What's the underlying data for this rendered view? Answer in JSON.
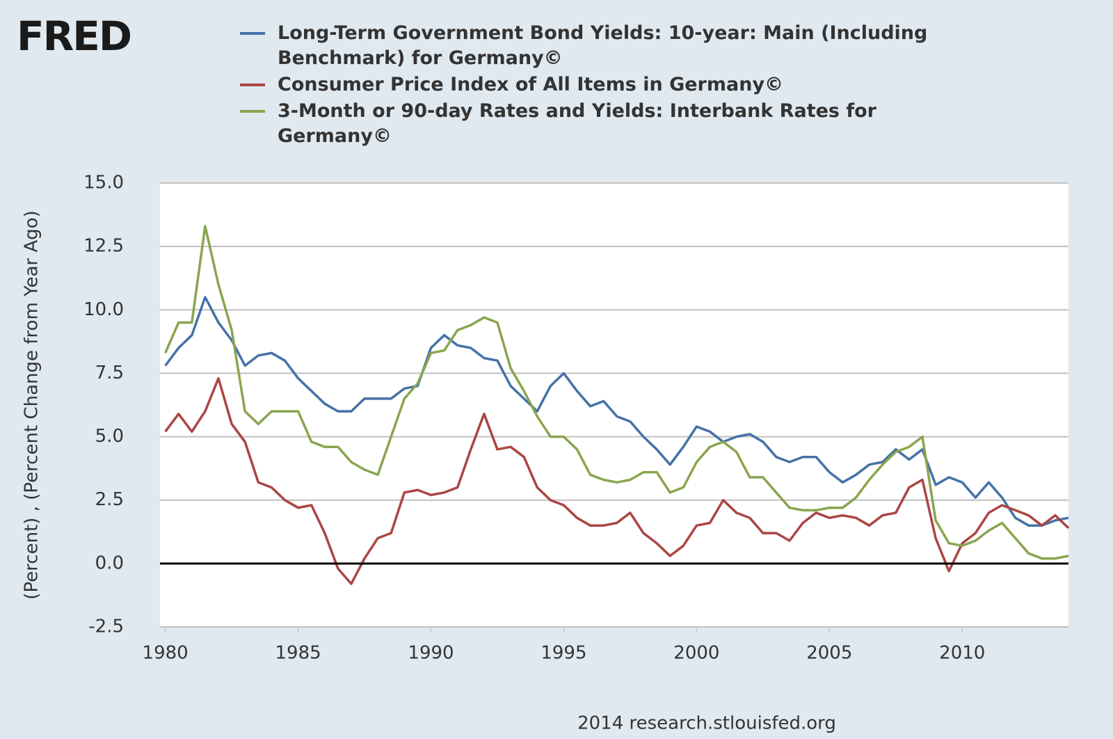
{
  "logo": "FRED",
  "chart_data": {
    "type": "line",
    "ylabel": "(Percent) , (Percent Change from Year Ago)",
    "source": "2014 research.stlouisfed.org",
    "x": [
      1980,
      1980.5,
      1981,
      1981.5,
      1982,
      1982.5,
      1983,
      1983.5,
      1984,
      1984.5,
      1985,
      1985.5,
      1986,
      1986.5,
      1987,
      1987.5,
      1988,
      1988.5,
      1989,
      1989.5,
      1990,
      1990.5,
      1991,
      1991.5,
      1992,
      1992.5,
      1993,
      1993.5,
      1994,
      1994.5,
      1995,
      1995.5,
      1996,
      1996.5,
      1997,
      1997.5,
      1998,
      1998.5,
      1999,
      1999.5,
      2000,
      2000.5,
      2001,
      2001.5,
      2002,
      2002.5,
      2003,
      2003.5,
      2004,
      2004.5,
      2005,
      2005.5,
      2006,
      2006.5,
      2007,
      2007.5,
      2008,
      2008.5,
      2009,
      2009.5,
      2010,
      2010.5,
      2011,
      2011.5,
      2012,
      2012.5,
      2013,
      2013.5,
      2014
    ],
    "xlim": [
      1979.8,
      2014
    ],
    "xticks": [
      1980,
      1985,
      1990,
      1995,
      2000,
      2005,
      2010
    ],
    "ylim": [
      -2.5,
      15
    ],
    "yticks": [
      {
        "value": -2.5,
        "label": "-2.5"
      },
      {
        "value": 0,
        "label": "0.0"
      },
      {
        "value": 2.5,
        "label": "2.5"
      },
      {
        "value": 5,
        "label": "5.0"
      },
      {
        "value": 7.5,
        "label": "7.5"
      },
      {
        "value": 10,
        "label": "10.0"
      },
      {
        "value": 12.5,
        "label": "12.5"
      },
      {
        "value": 15,
        "label": "15.0"
      }
    ],
    "grid": true,
    "series": [
      {
        "name": "Long-Term Government Bond Yields: 10-year: Main (Including Benchmark) for Germany©",
        "color": "#4572a7",
        "values": [
          7.8,
          8.5,
          9.0,
          10.5,
          9.5,
          8.8,
          7.8,
          8.2,
          8.3,
          8.0,
          7.3,
          6.8,
          6.3,
          6.0,
          6.0,
          6.5,
          6.5,
          6.5,
          6.9,
          7.0,
          8.5,
          9.0,
          8.6,
          8.5,
          8.1,
          8.0,
          7.0,
          6.5,
          6.0,
          7.0,
          7.5,
          6.8,
          6.2,
          6.4,
          5.8,
          5.6,
          5.0,
          4.5,
          3.9,
          4.6,
          5.4,
          5.2,
          4.8,
          5.0,
          5.1,
          4.8,
          4.2,
          4.0,
          4.2,
          4.2,
          3.6,
          3.2,
          3.5,
          3.9,
          4.0,
          4.5,
          4.1,
          4.5,
          3.1,
          3.4,
          3.2,
          2.6,
          3.2,
          2.6,
          1.8,
          1.5,
          1.5,
          1.7,
          1.8
        ]
      },
      {
        "name": "Consumer Price Index of All Items in Germany©",
        "color": "#aa4643",
        "values": [
          5.2,
          5.9,
          5.2,
          6.0,
          7.3,
          5.5,
          4.8,
          3.2,
          3.0,
          2.5,
          2.2,
          2.3,
          1.2,
          -0.2,
          -0.8,
          0.2,
          1.0,
          1.2,
          2.8,
          2.9,
          2.7,
          2.8,
          3.0,
          4.5,
          5.9,
          4.5,
          4.6,
          4.2,
          3.0,
          2.5,
          2.3,
          1.8,
          1.5,
          1.5,
          1.6,
          2.0,
          1.2,
          0.8,
          0.3,
          0.7,
          1.5,
          1.6,
          2.5,
          2.0,
          1.8,
          1.2,
          1.2,
          0.9,
          1.6,
          2.0,
          1.8,
          1.9,
          1.8,
          1.5,
          1.9,
          2.0,
          3.0,
          3.3,
          1.0,
          -0.3,
          0.8,
          1.2,
          2.0,
          2.3,
          2.1,
          1.9,
          1.5,
          1.9,
          1.4
        ]
      },
      {
        "name": "3-Month or 90-day Rates and Yields: Interbank Rates for Germany©",
        "color": "#89a54e",
        "values": [
          8.3,
          9.5,
          9.5,
          13.3,
          11.0,
          9.2,
          6.0,
          5.5,
          6.0,
          6.0,
          6.0,
          4.8,
          4.6,
          4.6,
          4.0,
          3.7,
          3.5,
          5.0,
          6.5,
          7.1,
          8.3,
          8.4,
          9.2,
          9.4,
          9.7,
          9.5,
          7.7,
          6.8,
          5.8,
          5.0,
          5.0,
          4.5,
          3.5,
          3.3,
          3.2,
          3.3,
          3.6,
          3.6,
          2.8,
          3.0,
          4.0,
          4.6,
          4.8,
          4.4,
          3.4,
          3.4,
          2.8,
          2.2,
          2.1,
          2.1,
          2.2,
          2.2,
          2.6,
          3.3,
          3.9,
          4.4,
          4.6,
          5.0,
          1.7,
          0.8,
          0.7,
          0.9,
          1.3,
          1.6,
          1.0,
          0.4,
          0.2,
          0.2,
          0.3
        ]
      }
    ]
  }
}
